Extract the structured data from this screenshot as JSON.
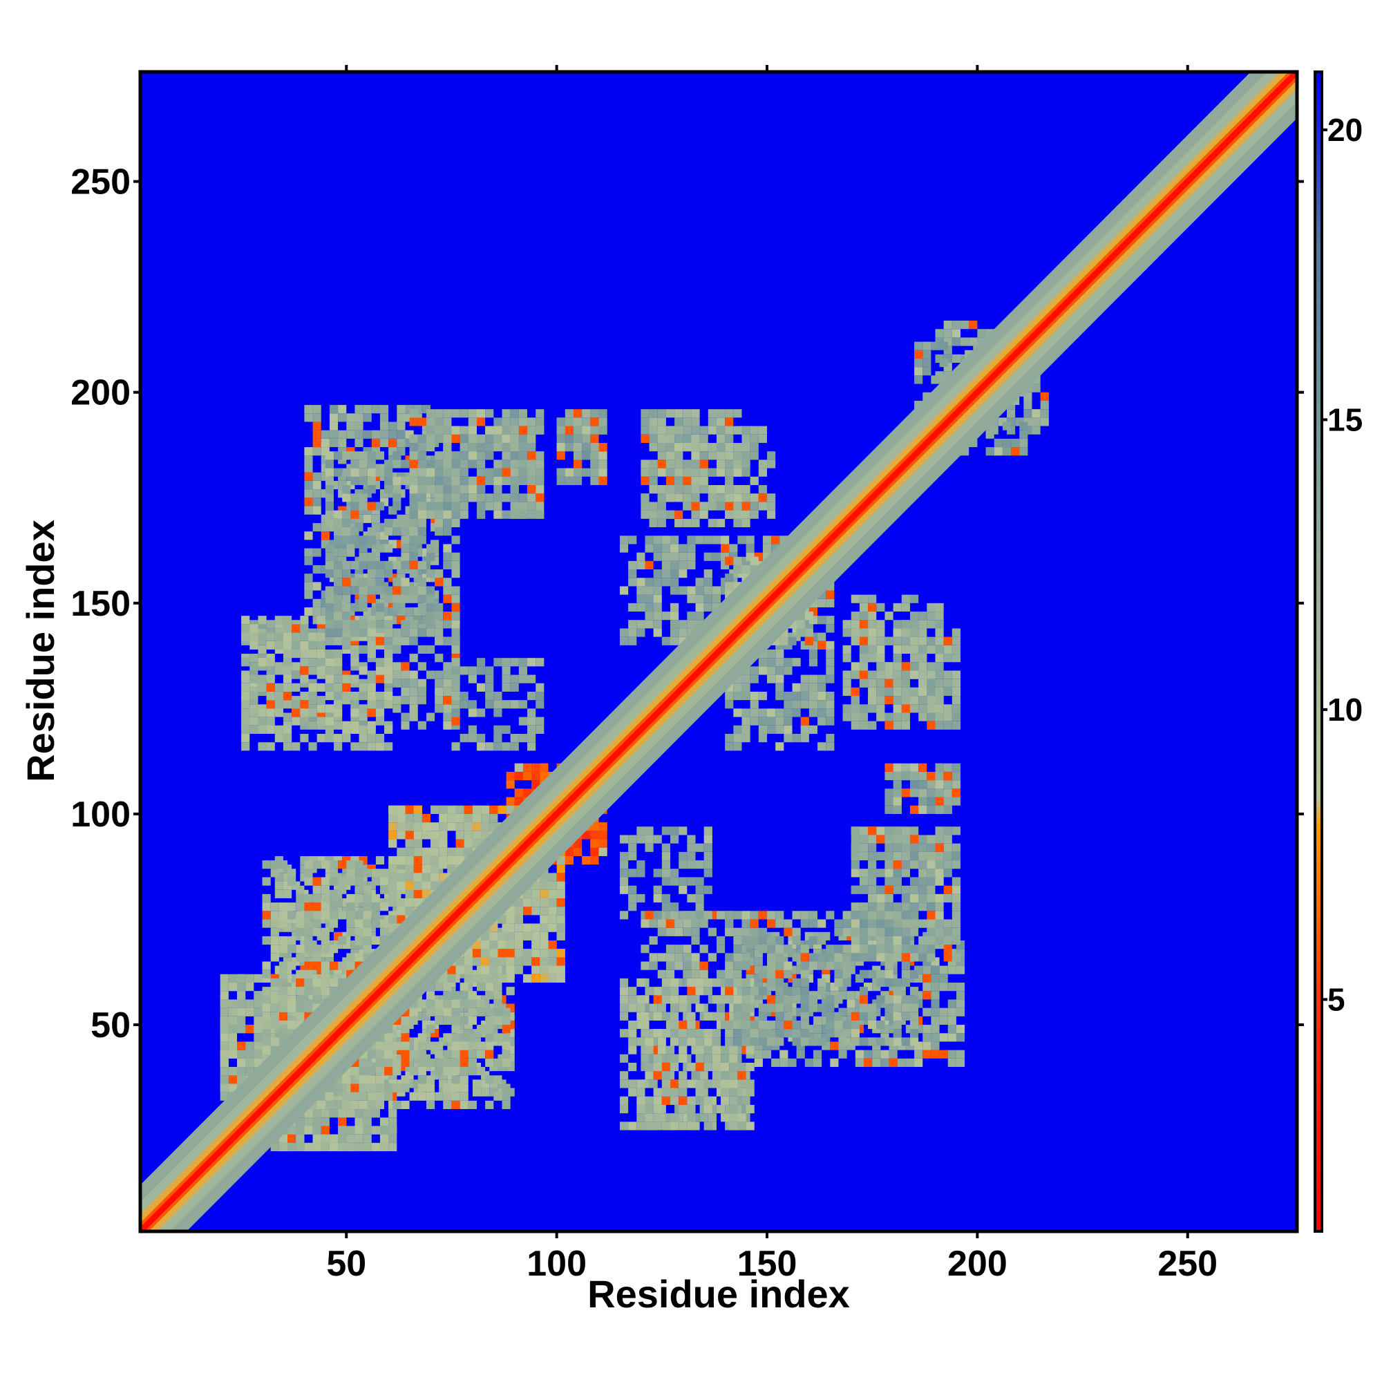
{
  "chart_data": {
    "type": "heatmap",
    "title": "",
    "xlabel": "Residue index",
    "ylabel": "Residue index",
    "xlim": [
      1,
      276
    ],
    "ylim": [
      1,
      276
    ],
    "xticks": [
      50,
      100,
      150,
      200,
      250
    ],
    "yticks": [
      50,
      100,
      150,
      200,
      250
    ],
    "grid": false,
    "colorbar": {
      "ticks": [
        5,
        10,
        15,
        20
      ],
      "range": [
        1,
        21
      ],
      "stops": [
        {
          "value": 1,
          "color": "#ff0000"
        },
        {
          "value": 5,
          "color": "#ff3300"
        },
        {
          "value": 8,
          "color": "#ff9900"
        },
        {
          "value": 8.5,
          "color": "#b7c59a"
        },
        {
          "value": 13,
          "color": "#8faa9a"
        },
        {
          "value": 18,
          "color": "#4f79a0"
        },
        {
          "value": 21,
          "color": "#0000ff"
        }
      ]
    },
    "background_color": "#0000f5",
    "description_of_values": "pairwise residue distance matrix (symmetric); values near diagonal low (red), far contacts high (blue)",
    "contact_regions": [
      {
        "x": [
          20,
          60
        ],
        "y": [
          20,
          60
        ],
        "value": 11
      },
      {
        "x": [
          33,
          88
        ],
        "y": [
          30,
          88
        ],
        "value": 11
      },
      {
        "x": [
          60,
          100
        ],
        "y": [
          60,
          100
        ],
        "value": 10
      },
      {
        "x": [
          90,
          110
        ],
        "y": [
          88,
          110
        ],
        "value": 6
      },
      {
        "x": [
          120,
          145
        ],
        "y": [
          25,
          75
        ],
        "value": 12
      },
      {
        "x": [
          145,
          195
        ],
        "y": [
          40,
          70
        ],
        "value": 13
      },
      {
        "x": [
          170,
          195
        ],
        "y": [
          65,
          95
        ],
        "value": 13
      },
      {
        "x": [
          178,
          195
        ],
        "y": [
          100,
          110
        ],
        "value": 13
      },
      {
        "x": [
          168,
          195
        ],
        "y": [
          120,
          145
        ],
        "value": 12
      },
      {
        "x": [
          25,
          60
        ],
        "y": [
          115,
          145
        ],
        "value": 11
      },
      {
        "x": [
          45,
          75
        ],
        "y": [
          140,
          185
        ],
        "value": 13
      },
      {
        "x": [
          65,
          95
        ],
        "y": [
          170,
          190
        ],
        "value": 13
      },
      {
        "x": [
          120,
          150
        ],
        "y": [
          170,
          190
        ],
        "value": 12
      },
      {
        "x": [
          115,
          160
        ],
        "y": [
          140,
          165
        ],
        "value": 13
      },
      {
        "x": [
          100,
          110
        ],
        "y": [
          180,
          192
        ],
        "value": 14
      },
      {
        "x": [
          75,
          95
        ],
        "y": [
          115,
          135
        ],
        "value": 13
      },
      {
        "x": [
          145,
          160
        ],
        "y": [
          140,
          160
        ],
        "value": 11
      },
      {
        "x": [
          190,
          210
        ],
        "y": [
          185,
          215
        ],
        "value": 13
      }
    ]
  }
}
